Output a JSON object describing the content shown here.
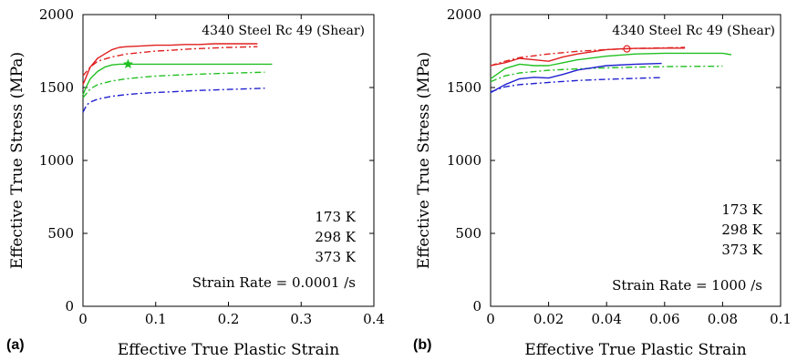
{
  "colors": {
    "173 K": "#e02020",
    "298 K": "#22c022",
    "373 K": "#2020d0"
  },
  "chart_data": [
    {
      "type": "line",
      "panel_label": "(a)",
      "title": "4340 Steel Rc 49 (Shear)",
      "xlabel": "Effective True Plastic Strain",
      "ylabel": "Effective True Stress (MPa)",
      "xlim": [
        0,
        0.4
      ],
      "ylim": [
        0,
        2000
      ],
      "xticks": [
        "0",
        "0.1",
        "0.2",
        "0.3",
        "0.4"
      ],
      "yticks": [
        "0",
        "500",
        "1000",
        "1500",
        "2000"
      ],
      "legend_text": [
        "173 K",
        "298 K",
        "373 K"
      ],
      "strain_rate_label": "Strain Rate = 0.0001 /s",
      "grid": false,
      "series": [
        {
          "name": "173 K",
          "style": "solid",
          "color_key": "173 K",
          "x": [
            0,
            0.005,
            0.01,
            0.02,
            0.03,
            0.04,
            0.05,
            0.06,
            0.08,
            0.1,
            0.12,
            0.14,
            0.16,
            0.18,
            0.2,
            0.22,
            0.24
          ],
          "y": [
            1520,
            1580,
            1640,
            1700,
            1730,
            1760,
            1775,
            1780,
            1785,
            1790,
            1790,
            1795,
            1795,
            1800,
            1800,
            1800,
            1800
          ]
        },
        {
          "name": "173 K",
          "style": "dashed",
          "color_key": "173 K",
          "x": [
            0,
            0.01,
            0.02,
            0.04,
            0.06,
            0.08,
            0.1,
            0.12,
            0.15,
            0.2,
            0.24
          ],
          "y": [
            1580,
            1640,
            1680,
            1710,
            1730,
            1740,
            1750,
            1755,
            1765,
            1775,
            1780
          ]
        },
        {
          "name": "298 K",
          "style": "solid",
          "color_key": "298 K",
          "x": [
            0,
            0.005,
            0.01,
            0.02,
            0.03,
            0.04,
            0.05,
            0.06,
            0.08,
            0.1,
            0.12,
            0.14,
            0.16,
            0.18,
            0.2,
            0.22,
            0.24,
            0.26
          ],
          "y": [
            1450,
            1510,
            1560,
            1610,
            1640,
            1655,
            1660,
            1660,
            1660,
            1660,
            1660,
            1660,
            1660,
            1660,
            1660,
            1660,
            1660,
            1660
          ]
        },
        {
          "name": "298 K",
          "style": "dashed",
          "color_key": "298 K",
          "x": [
            0,
            0.01,
            0.02,
            0.04,
            0.06,
            0.08,
            0.1,
            0.12,
            0.15,
            0.2,
            0.25
          ],
          "y": [
            1430,
            1490,
            1520,
            1545,
            1560,
            1570,
            1578,
            1583,
            1590,
            1598,
            1605
          ]
        },
        {
          "name": "373 K",
          "style": "dashed",
          "color_key": "373 K",
          "x": [
            0,
            0.005,
            0.01,
            0.02,
            0.04,
            0.06,
            0.08,
            0.1,
            0.12,
            0.15,
            0.2,
            0.25
          ],
          "y": [
            1330,
            1380,
            1400,
            1420,
            1440,
            1452,
            1460,
            1466,
            1470,
            1478,
            1487,
            1495
          ]
        }
      ],
      "markers": [
        {
          "shape": "star",
          "x": 0.062,
          "y": 1660,
          "color_key": "298 K"
        }
      ]
    },
    {
      "type": "line",
      "panel_label": "(b)",
      "title": "4340 Steel Rc 49 (Shear)",
      "xlabel": "Effective True Plastic Strain",
      "ylabel": "Effective True Stress (MPa)",
      "xlim": [
        0,
        0.1
      ],
      "ylim": [
        0,
        2000
      ],
      "xticks": [
        "0",
        "0.02",
        "0.04",
        "0.06",
        "0.08",
        "0.1"
      ],
      "yticks": [
        "0",
        "500",
        "1000",
        "1500",
        "2000"
      ],
      "legend_text": [
        "173 K",
        "298 K",
        "373 K"
      ],
      "strain_rate_label": "Strain Rate = 1000 /s",
      "grid": false,
      "series": [
        {
          "name": "173 K",
          "style": "solid",
          "color_key": "173 K",
          "x": [
            0,
            0.005,
            0.01,
            0.015,
            0.02,
            0.025,
            0.03,
            0.035,
            0.04,
            0.045,
            0.05,
            0.055,
            0.06,
            0.067
          ],
          "y": [
            1650,
            1670,
            1700,
            1690,
            1680,
            1710,
            1730,
            1745,
            1760,
            1765,
            1768,
            1768,
            1770,
            1770
          ]
        },
        {
          "name": "173 K",
          "style": "dashed",
          "color_key": "173 K",
          "x": [
            0,
            0.005,
            0.01,
            0.02,
            0.03,
            0.04,
            0.05,
            0.06,
            0.067
          ],
          "y": [
            1650,
            1680,
            1705,
            1730,
            1748,
            1760,
            1768,
            1772,
            1775
          ]
        },
        {
          "name": "298 K",
          "style": "solid",
          "color_key": "298 K",
          "x": [
            0,
            0.005,
            0.01,
            0.015,
            0.02,
            0.025,
            0.03,
            0.04,
            0.05,
            0.06,
            0.07,
            0.08,
            0.083
          ],
          "y": [
            1560,
            1630,
            1660,
            1650,
            1650,
            1670,
            1690,
            1715,
            1730,
            1735,
            1735,
            1735,
            1725
          ]
        },
        {
          "name": "298 K",
          "style": "dashed",
          "color_key": "298 K",
          "x": [
            0,
            0.005,
            0.01,
            0.02,
            0.03,
            0.04,
            0.05,
            0.06,
            0.07,
            0.08
          ],
          "y": [
            1540,
            1580,
            1600,
            1618,
            1628,
            1635,
            1640,
            1643,
            1645,
            1646
          ]
        },
        {
          "name": "373 K",
          "style": "solid",
          "color_key": "373 K",
          "x": [
            0,
            0.005,
            0.01,
            0.015,
            0.02,
            0.025,
            0.03,
            0.04,
            0.05,
            0.059
          ],
          "y": [
            1465,
            1520,
            1560,
            1570,
            1565,
            1590,
            1620,
            1650,
            1660,
            1665
          ]
        },
        {
          "name": "373 K",
          "style": "dashed",
          "color_key": "373 K",
          "x": [
            0,
            0.005,
            0.01,
            0.02,
            0.03,
            0.04,
            0.05,
            0.059
          ],
          "y": [
            1470,
            1505,
            1520,
            1535,
            1548,
            1556,
            1563,
            1568
          ]
        }
      ],
      "markers": [
        {
          "shape": "circle",
          "x": 0.047,
          "y": 1765,
          "color_key": "173 K"
        }
      ]
    }
  ]
}
